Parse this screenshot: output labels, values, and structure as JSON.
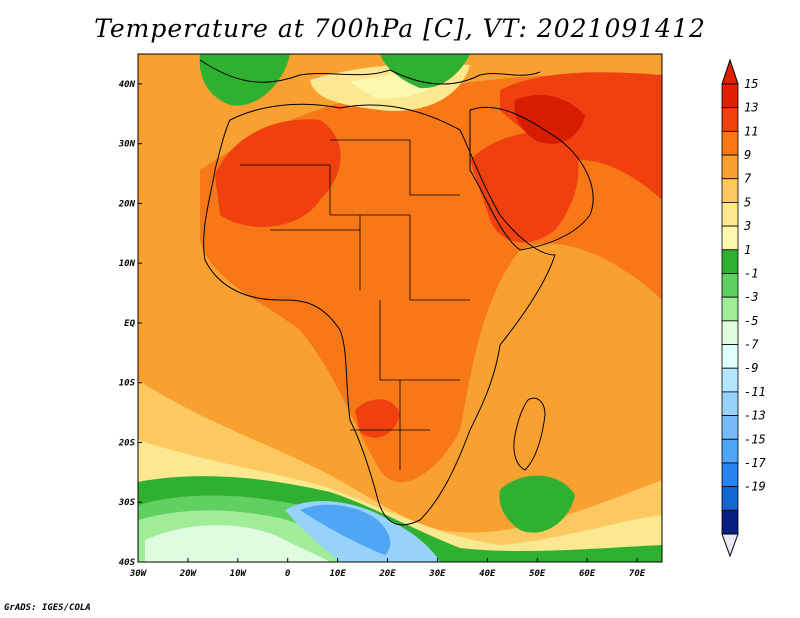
{
  "title": "Temperature at 700hPa [C], VT: 2021091412",
  "credit": "GrADS: IGES/COLA",
  "map": {
    "lon_range": [
      -30,
      75
    ],
    "lat_range": [
      -40,
      45
    ],
    "lon_ticks": [
      {
        "lon": -30,
        "label": "30W"
      },
      {
        "lon": -20,
        "label": "20W"
      },
      {
        "lon": -10,
        "label": "10W"
      },
      {
        "lon": 0,
        "label": "0"
      },
      {
        "lon": 10,
        "label": "10E"
      },
      {
        "lon": 20,
        "label": "20E"
      },
      {
        "lon": 30,
        "label": "30E"
      },
      {
        "lon": 40,
        "label": "40E"
      },
      {
        "lon": 50,
        "label": "50E"
      },
      {
        "lon": 60,
        "label": "60E"
      },
      {
        "lon": 70,
        "label": "70E"
      }
    ],
    "lat_ticks": [
      {
        "lat": 40,
        "label": "40N"
      },
      {
        "lat": 30,
        "label": "30N"
      },
      {
        "lat": 20,
        "label": "20N"
      },
      {
        "lat": 10,
        "label": "10N"
      },
      {
        "lat": 0,
        "label": "EQ"
      },
      {
        "lat": -10,
        "label": "10S"
      },
      {
        "lat": -20,
        "label": "20S"
      },
      {
        "lat": -30,
        "label": "30S"
      },
      {
        "lat": -40,
        "label": "40S"
      }
    ]
  },
  "colorbar": {
    "labels": [
      "15",
      "13",
      "11",
      "9",
      "7",
      "5",
      "3",
      "1",
      "-1",
      "-3",
      "-5",
      "-7",
      "-9",
      "-11",
      "-13",
      "-15",
      "-17",
      "-19"
    ],
    "colors": [
      "#e02000",
      "#f04010",
      "#f87818",
      "#f8a030",
      "#fcc860",
      "#fce890",
      "#fcf8b0",
      "#30b030",
      "#60d060",
      "#a0ec98",
      "#e0fce0",
      "#e0ffff",
      "#b4e6ff",
      "#96d2fa",
      "#78b9fa",
      "#50a5f5",
      "#2882f0",
      "#1464d2",
      "#0a2080"
    ],
    "top_arrow_color": "#e02000",
    "bottom_arrow_color": "#e8e8f8"
  }
}
